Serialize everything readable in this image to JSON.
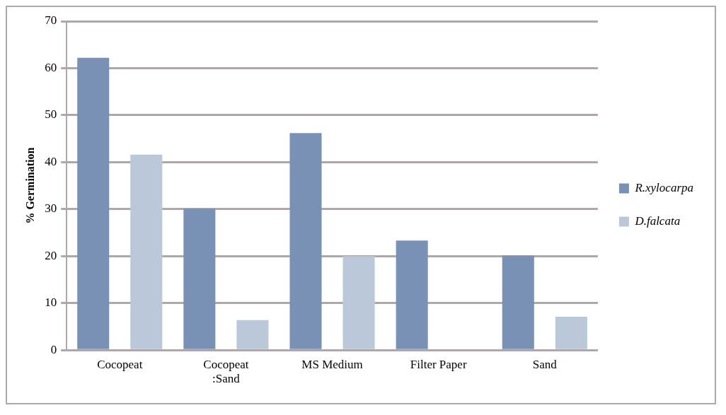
{
  "chart_data": {
    "type": "bar",
    "ylabel": "% Germination",
    "categories": [
      "Cocopeat",
      "Cocopeat :Sand",
      "MS Medium",
      "Filter Paper",
      "Sand"
    ],
    "series": [
      {
        "name": "R.xylocarpa",
        "color": "#7891b5",
        "values": [
          62.2,
          30.1,
          46.2,
          23.3,
          20.1
        ]
      },
      {
        "name": "D.falcata",
        "color": "#bbc8da",
        "values": [
          41.6,
          6.4,
          20,
          0,
          7.1
        ]
      }
    ],
    "ylim": [
      0,
      70
    ],
    "yticks": [
      0,
      10,
      20,
      30,
      40,
      50,
      60,
      70
    ],
    "grid": "y",
    "legend": "right"
  }
}
